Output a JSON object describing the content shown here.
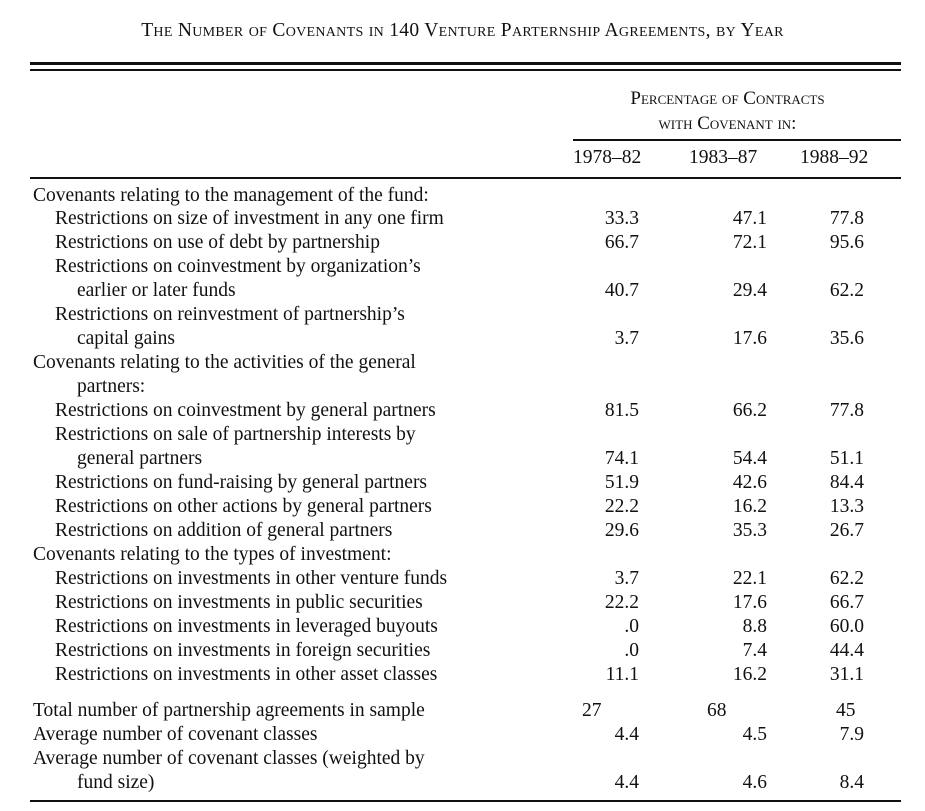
{
  "table": {
    "caption": "The Number of Covenants in 140 Venture Parternship Agreements, by Year",
    "column_group_header": [
      "Percentage of Contracts",
      "with Covenant in:"
    ],
    "columns": [
      "1978–82",
      "1983–87",
      "1988–92"
    ],
    "rows": [
      {
        "label": "Covenants relating to the management of the fund:",
        "values": [
          "",
          "",
          ""
        ]
      },
      {
        "label": "Restrictions on size of investment in any one firm",
        "values": [
          "33.3",
          "47.1",
          "77.8"
        ]
      },
      {
        "label": "Restrictions on use of debt by partnership",
        "values": [
          "66.7",
          "72.1",
          "95.6"
        ]
      },
      {
        "label": "Restrictions on coinvestment by organization’s",
        "values": [
          "",
          "",
          ""
        ]
      },
      {
        "label": "earlier or later funds",
        "values": [
          "40.7",
          "29.4",
          "62.2"
        ]
      },
      {
        "label": "Restrictions on reinvestment of partnership’s",
        "values": [
          "",
          "",
          ""
        ]
      },
      {
        "label": "capital gains",
        "values": [
          "3.7",
          "17.6",
          "35.6"
        ]
      },
      {
        "label": "Covenants relating to the activities of the general",
        "values": [
          "",
          "",
          ""
        ]
      },
      {
        "label": "partners:",
        "values": [
          "",
          "",
          ""
        ]
      },
      {
        "label": "Restrictions on coinvestment by general partners",
        "values": [
          "81.5",
          "66.2",
          "77.8"
        ]
      },
      {
        "label": "Restrictions on sale of partnership interests by",
        "values": [
          "",
          "",
          ""
        ]
      },
      {
        "label": "general partners",
        "values": [
          "74.1",
          "54.4",
          "51.1"
        ]
      },
      {
        "label": "Restrictions on fund-raising by general partners",
        "values": [
          "51.9",
          "42.6",
          "84.4"
        ]
      },
      {
        "label": "Restrictions on other actions by general partners",
        "values": [
          "22.2",
          "16.2",
          "13.3"
        ]
      },
      {
        "label": "Restrictions on addition of general partners",
        "values": [
          "29.6",
          "35.3",
          "26.7"
        ]
      },
      {
        "label": "Covenants relating to the types of investment:",
        "values": [
          "",
          "",
          ""
        ]
      },
      {
        "label": "Restrictions on investments in other venture funds",
        "values": [
          "3.7",
          "22.1",
          "62.2"
        ]
      },
      {
        "label": "Restrictions on investments in public securities",
        "values": [
          "22.2",
          "17.6",
          "66.7"
        ]
      },
      {
        "label": "Restrictions on investments in leveraged buyouts",
        "values": [
          ".0",
          "8.8",
          "60.0"
        ]
      },
      {
        "label": "Restrictions on investments in foreign securities",
        "values": [
          ".0",
          "7.4",
          "44.4"
        ]
      },
      {
        "label": "Restrictions on investments in other asset classes",
        "values": [
          "11.1",
          "16.2",
          "31.1"
        ]
      },
      {
        "label": "Total number of partnership agreements in sample",
        "values": [
          "27",
          "68",
          "45"
        ]
      },
      {
        "label": "Average number of covenant classes",
        "values": [
          "4.4",
          "4.5",
          "7.9"
        ]
      },
      {
        "label": "Average number of covenant classes (weighted by",
        "values": [
          "",
          "",
          ""
        ]
      },
      {
        "label": "fund size)",
        "values": [
          "4.4",
          "4.6",
          "8.4"
        ]
      }
    ]
  }
}
